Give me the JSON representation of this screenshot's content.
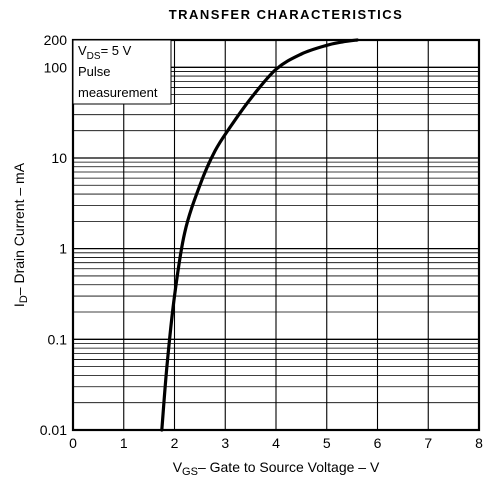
{
  "chart_data": {
    "type": "line",
    "title": "TRANSFER CHARACTERISTICS",
    "xlabel": {
      "main": "V",
      "sub": "GS",
      "rest": "– Gate to Source Voltage – V"
    },
    "ylabel": {
      "main": "I",
      "sub": "D",
      "rest": "– Drain Current – mA"
    },
    "xlim": [
      0,
      8
    ],
    "ylim": [
      0.01,
      200
    ],
    "yscale": "log",
    "grid": true,
    "xticks": [
      "0",
      "1",
      "2",
      "3",
      "4",
      "5",
      "6",
      "7",
      "8"
    ],
    "yticks": [
      {
        "value": 200,
        "label": "200"
      },
      {
        "value": 100,
        "label": "100"
      },
      {
        "value": 10,
        "label": "10"
      },
      {
        "value": 1,
        "label": "1"
      },
      {
        "value": 0.1,
        "label": "0.1"
      },
      {
        "value": 0.01,
        "label": "0.01"
      }
    ],
    "annotation": {
      "condition_main": "V",
      "condition_sub": "DS",
      "condition_rest": "= 5 V",
      "line2": "Pulse",
      "line3": "measurement"
    },
    "series": [
      {
        "x": [
          1.75,
          1.85,
          2.0,
          2.2,
          2.5,
          2.8,
          3.1,
          3.5,
          4.0,
          4.5,
          5.0,
          5.3,
          5.6
        ],
        "y": [
          0.01,
          0.05,
          0.3,
          1.5,
          5,
          12,
          22,
          45,
          95,
          140,
          175,
          190,
          200
        ]
      }
    ]
  }
}
